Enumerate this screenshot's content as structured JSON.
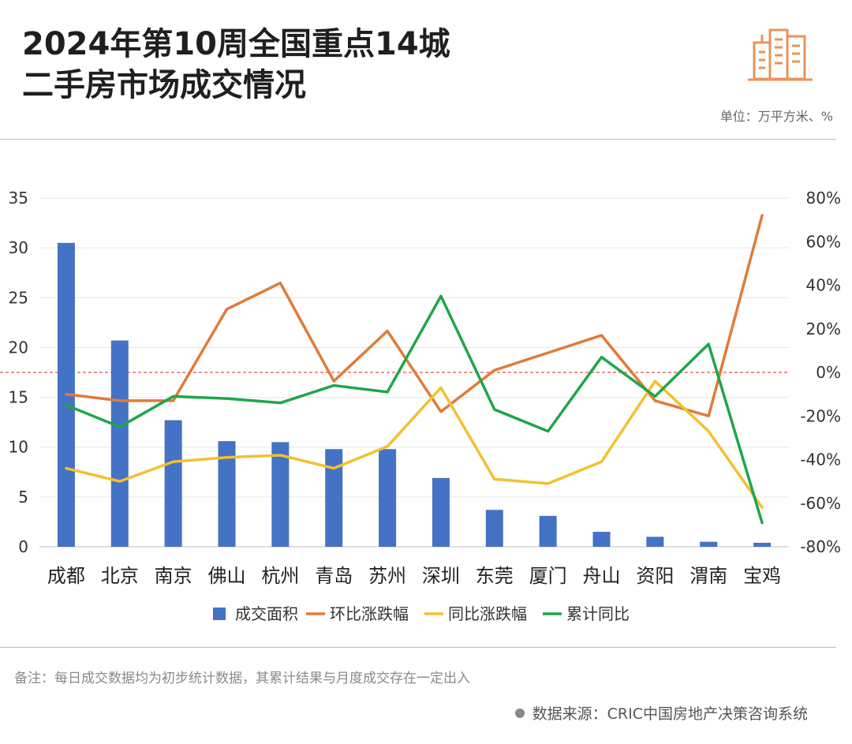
{
  "header": {
    "title_line1": "2024年第10周全国重点14城",
    "title_line2": "二手房市场成交情况",
    "unit": "单位：万平方米、%"
  },
  "footer": {
    "note": "备注：每日成交数据均为初步统计数据，其累计结果与月度成交存在一定出入",
    "source": "数据来源：CRIC中国房地产决策咨询系统"
  },
  "logo_icon": "city-buildings-icon",
  "colors": {
    "bar": "#4472C4",
    "mom": "#E07B39",
    "yoy": "#F2C12E",
    "cum": "#1FA64A",
    "zero_line": "#E05050"
  },
  "chart_data": {
    "type": "bar",
    "categories": [
      "成都",
      "北京",
      "南京",
      "佛山",
      "杭州",
      "青岛",
      "苏州",
      "深圳",
      "东莞",
      "厦门",
      "舟山",
      "资阳",
      "渭南",
      "宝鸡"
    ],
    "left_axis": {
      "min": 0,
      "max": 35,
      "ticks": [
        0,
        5,
        10,
        15,
        20,
        25,
        30,
        35
      ]
    },
    "right_axis": {
      "min": -80,
      "max": 80,
      "ticks": [
        "-80%",
        "-60%",
        "-40%",
        "-20%",
        "0%",
        "20%",
        "40%",
        "60%",
        "80%"
      ]
    },
    "series": [
      {
        "name": "成交面积",
        "type": "bar",
        "axis": "left",
        "values": [
          30.5,
          20.7,
          12.7,
          10.6,
          10.5,
          9.8,
          9.8,
          6.9,
          3.7,
          3.1,
          1.5,
          1.0,
          0.5,
          0.4
        ]
      },
      {
        "name": "环比涨跌幅",
        "type": "line",
        "axis": "right",
        "values": [
          -10,
          -13,
          -13,
          29,
          41,
          -4,
          19,
          -18,
          1,
          9,
          17,
          -13,
          -20,
          72
        ]
      },
      {
        "name": "同比涨跌幅",
        "type": "line",
        "axis": "right",
        "values": [
          -44,
          -50,
          -41,
          -39,
          -38,
          -44,
          -34,
          -7,
          -49,
          -51,
          -41,
          -4,
          -27,
          -62
        ]
      },
      {
        "name": "累计同比",
        "type": "line",
        "axis": "right",
        "values": [
          -15,
          -25,
          -11,
          -12,
          -14,
          -6,
          -9,
          35,
          -17,
          -27,
          7,
          -11,
          13,
          -69
        ]
      }
    ],
    "legend_position": "bottom",
    "zero_reference_line": true
  }
}
